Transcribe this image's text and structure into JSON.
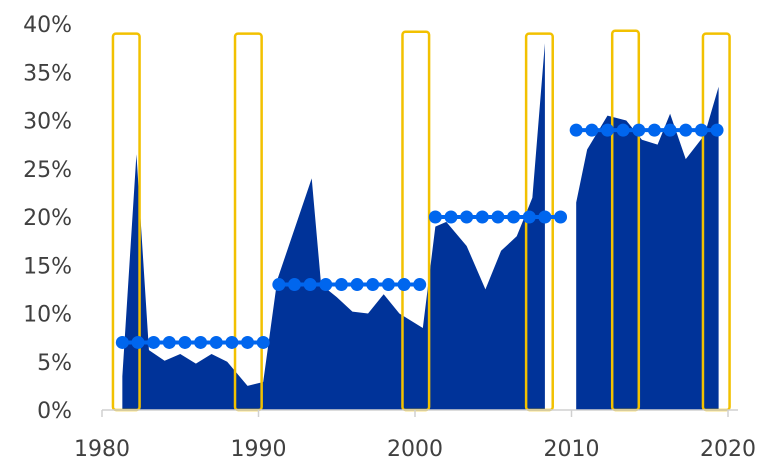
{
  "chart_data": {
    "type": "area",
    "x_ticks": [
      1980,
      1990,
      2000,
      2010,
      2020
    ],
    "x_tick_labels": [
      "1980",
      "1990",
      "2000",
      "2010",
      "2020"
    ],
    "y_ticks": [
      0,
      5,
      10,
      15,
      20,
      25,
      30,
      35,
      40
    ],
    "y_tick_labels": [
      "0%",
      "5%",
      "10%",
      "15%",
      "20%",
      "25%",
      "30%",
      "35%",
      "40%"
    ],
    "xlim": [
      1980,
      2020
    ],
    "ylim": [
      0,
      40
    ],
    "grid": false,
    "colors": {
      "area": "#003399",
      "dots": "#0066ee",
      "highlight": "#f2c100",
      "axis": "#d0d0d0",
      "text": "#404040"
    },
    "area_segments": [
      {
        "x": [
          1981.3,
          1982.2,
          1983.0,
          1984.0,
          1985.0,
          1986.0,
          1987.0,
          1988.0,
          1989.3,
          1990.3,
          1991.2,
          1993.4,
          1994.0,
          1995.0,
          1996.0,
          1997.0,
          1998.0,
          1999.0,
          2000.5,
          2001.3,
          2002.0,
          2003.3,
          2004.5,
          2005.5,
          2006.5,
          2007.5,
          2008.3
        ],
        "y": [
          3.5,
          26.5,
          6.2,
          5.1,
          5.8,
          4.8,
          5.8,
          5.0,
          2.5,
          2.9,
          13.5,
          24.0,
          13.0,
          11.7,
          10.2,
          10.0,
          12.0,
          10.0,
          8.5,
          19.0,
          19.5,
          17.0,
          12.5,
          16.5,
          18.0,
          22.0,
          38.0
        ]
      },
      {
        "x": [
          2010.3,
          2011.0,
          2012.3,
          2013.5,
          2014.5,
          2015.5,
          2016.3,
          2017.3,
          2018.5,
          2019.4
        ],
        "y": [
          21.5,
          27.0,
          30.5,
          30.0,
          28.0,
          27.5,
          30.7,
          26.0,
          28.5,
          33.5
        ]
      }
    ],
    "mean_series": [
      {
        "x": [
          1981.3,
          1982.3,
          1983.3,
          1984.3,
          1985.3,
          1986.3,
          1987.3,
          1988.3,
          1989.3,
          1990.3
        ],
        "value": 7
      },
      {
        "x": [
          1991.3,
          1992.3,
          1993.3,
          1994.3,
          1995.3,
          1996.3,
          1997.3,
          1998.3,
          1999.3,
          2000.3
        ],
        "value": 13
      },
      {
        "x": [
          2001.3,
          2002.3,
          2003.3,
          2004.3,
          2005.3,
          2006.3,
          2007.3,
          2008.3,
          2009.3
        ],
        "value": 20
      },
      {
        "x": [
          2010.3,
          2011.3,
          2012.3,
          2013.3,
          2014.3,
          2015.3,
          2016.3,
          2017.3,
          2018.3,
          2019.3
        ],
        "value": 29
      }
    ],
    "highlight_boxes": [
      {
        "x_start": 1980.7,
        "x_end": 1982.4,
        "y_top": 39
      },
      {
        "x_start": 1988.5,
        "x_end": 1990.2,
        "y_top": 39
      },
      {
        "x_start": 1999.2,
        "x_end": 2000.9,
        "y_top": 39.2
      },
      {
        "x_start": 2007.1,
        "x_end": 2008.8,
        "y_top": 39
      },
      {
        "x_start": 2012.6,
        "x_end": 2014.3,
        "y_top": 39.3
      },
      {
        "x_start": 2018.4,
        "x_end": 2020.1,
        "y_top": 39
      }
    ]
  }
}
